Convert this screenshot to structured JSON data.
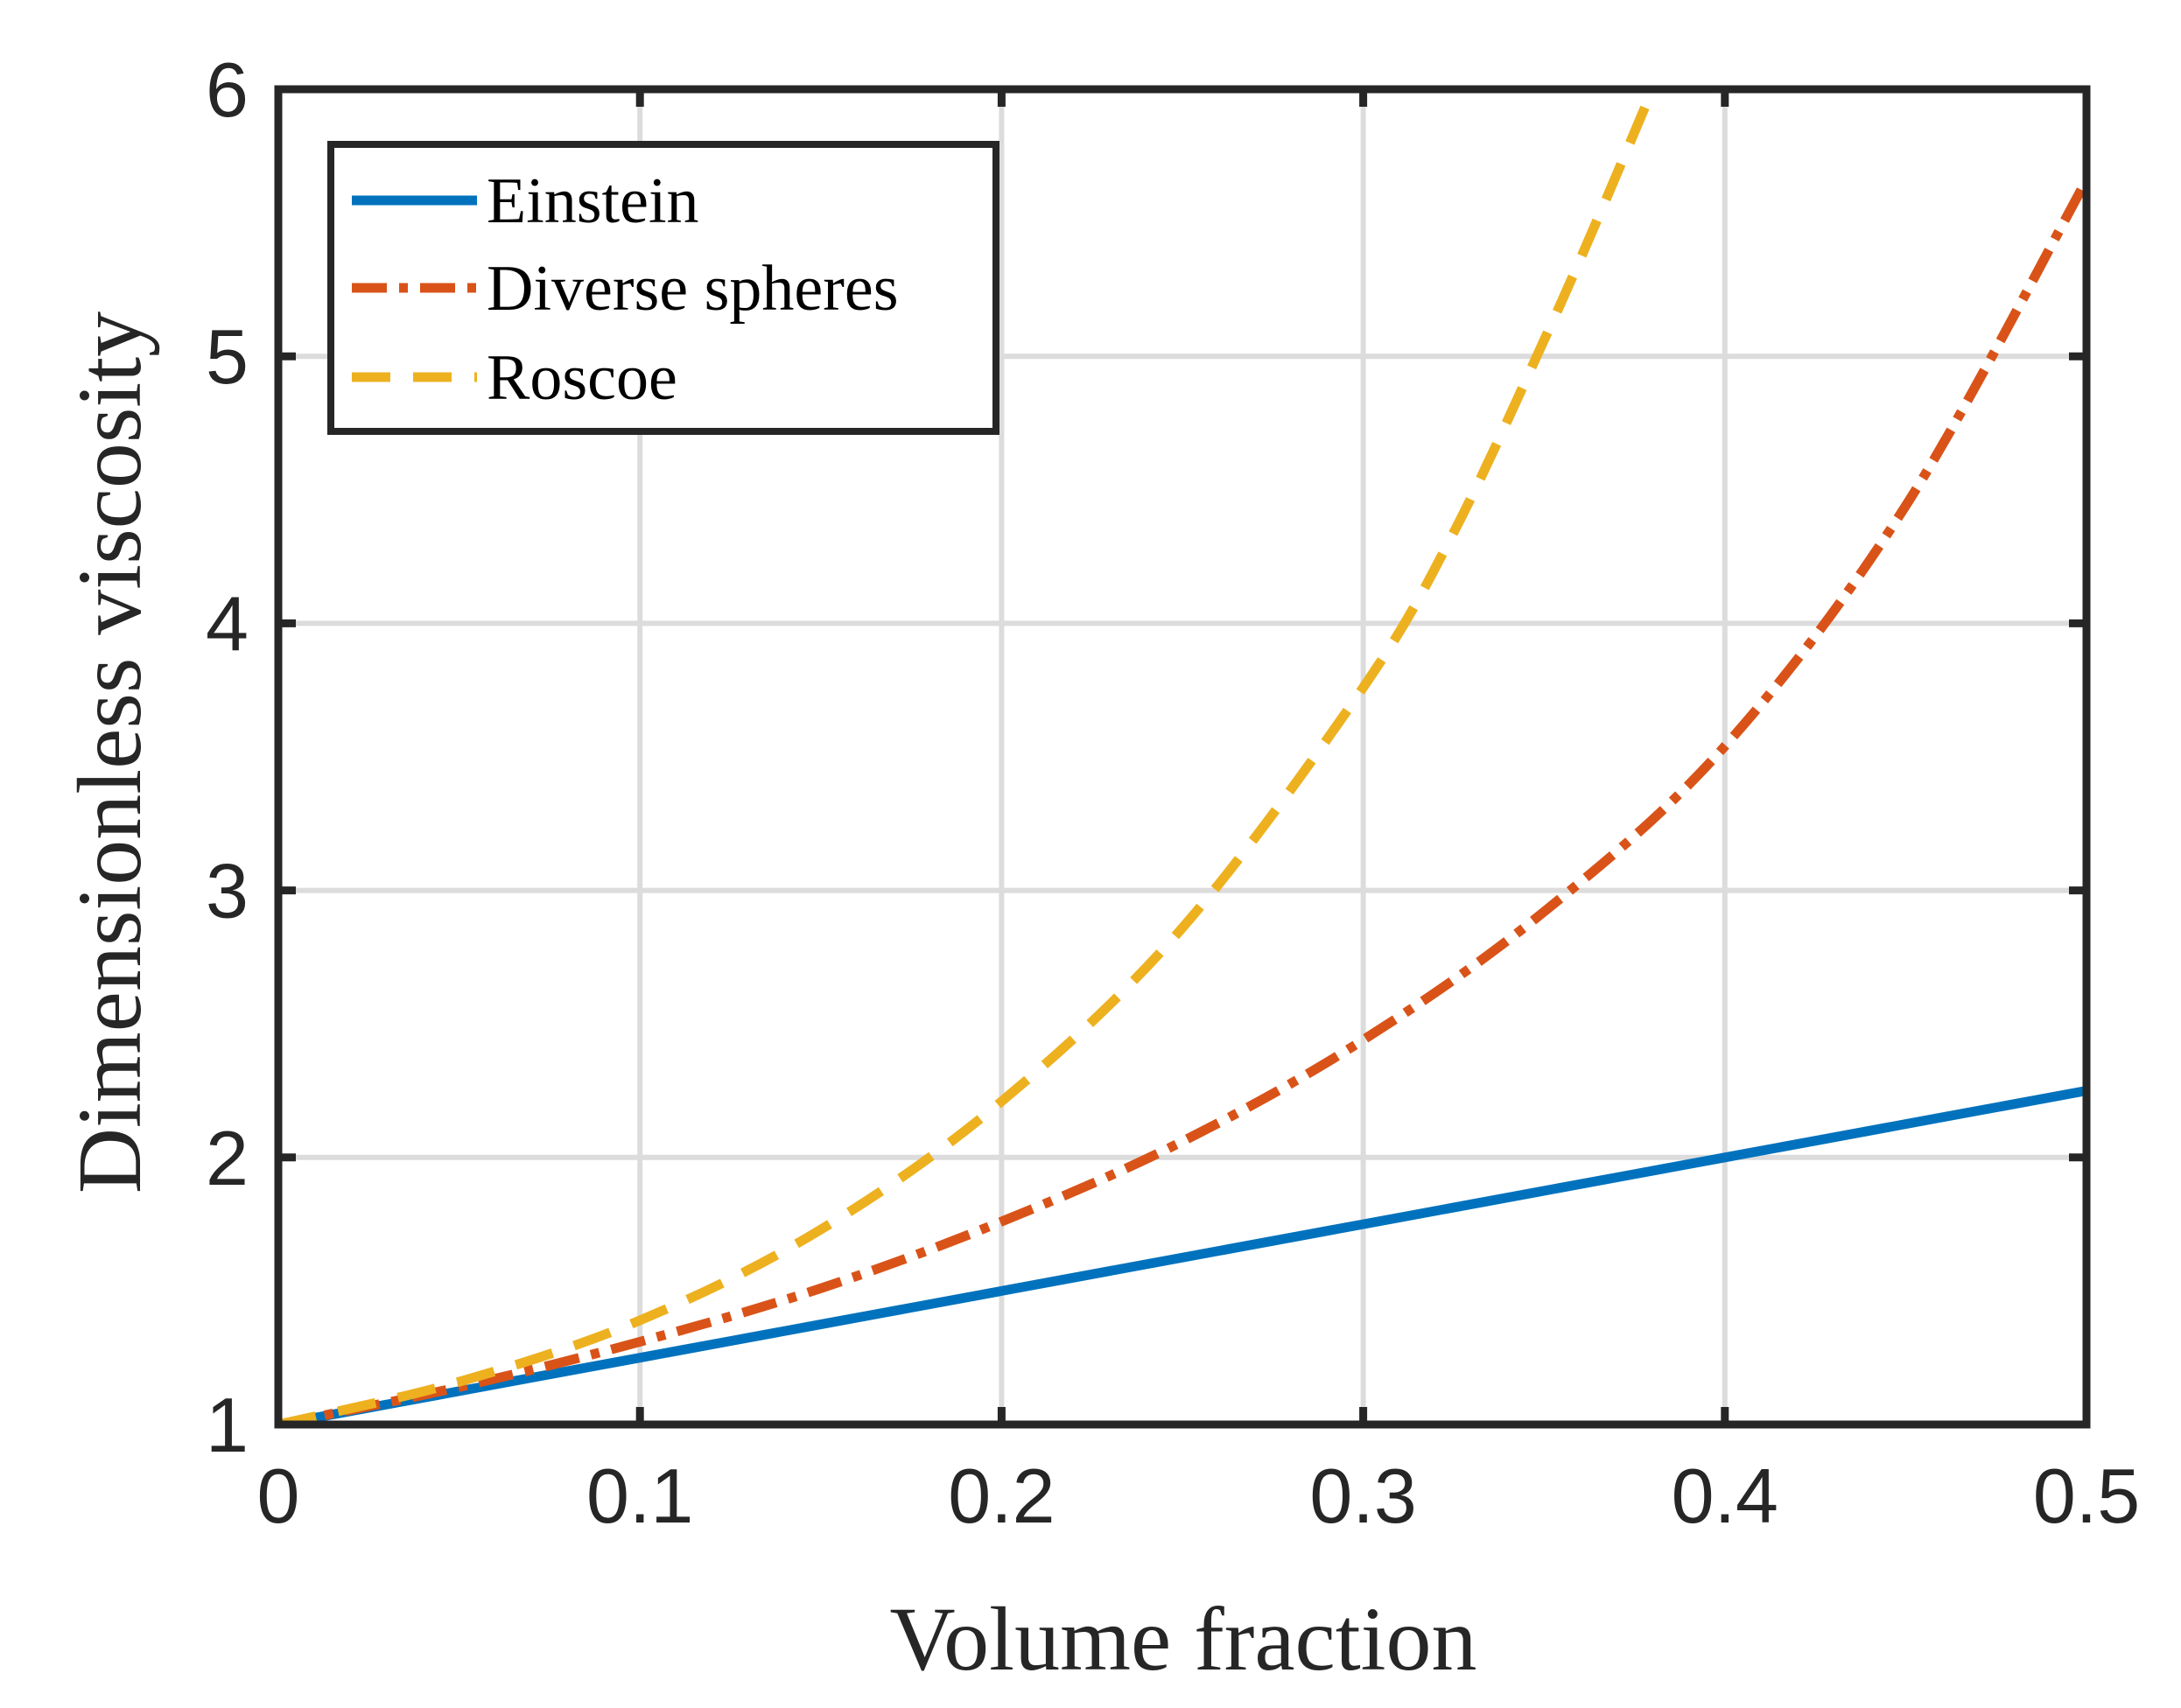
{
  "chart_data": {
    "type": "line",
    "title": "",
    "xlabel": "Volume fraction",
    "ylabel": "Dimensionless viscosity",
    "xlim": [
      0,
      0.5
    ],
    "ylim": [
      1,
      6
    ],
    "xticks": [
      0,
      0.1,
      0.2,
      0.3,
      0.4,
      0.5
    ],
    "xtick_labels": [
      "0",
      "0.1",
      "0.2",
      "0.3",
      "0.4",
      "0.5"
    ],
    "yticks": [
      1,
      2,
      3,
      4,
      5,
      6
    ],
    "ytick_labels": [
      "1",
      "2",
      "3",
      "4",
      "5",
      "6"
    ],
    "grid": true,
    "legend_position": "top-left",
    "series": [
      {
        "name": "Einstein",
        "color": "#0072BD",
        "style": "solid",
        "x": [
          0,
          0.05,
          0.1,
          0.15,
          0.2,
          0.25,
          0.3,
          0.35,
          0.4,
          0.45,
          0.5
        ],
        "y": [
          1,
          1.125,
          1.25,
          1.375,
          1.5,
          1.625,
          1.75,
          1.875,
          2.0,
          2.125,
          2.25
        ]
      },
      {
        "name": "Diverse spheres",
        "color": "#D95319",
        "style": "dashdot",
        "x": [
          0,
          0.05,
          0.1,
          0.15,
          0.2,
          0.25,
          0.3,
          0.35,
          0.4,
          0.45,
          0.5
        ],
        "y": [
          1,
          1.14,
          1.31,
          1.51,
          1.76,
          2.06,
          2.44,
          2.92,
          3.54,
          4.44,
          5.66
        ]
      },
      {
        "name": "Roscoe",
        "color": "#EDB120",
        "style": "dashed",
        "x": [
          0,
          0.05,
          0.1,
          0.15,
          0.2,
          0.25,
          0.3,
          0.325,
          0.35,
          0.365,
          0.38
        ],
        "y": [
          1,
          1.16,
          1.39,
          1.73,
          2.21,
          2.86,
          3.76,
          4.34,
          5.06,
          5.52,
          6.0
        ]
      }
    ]
  }
}
